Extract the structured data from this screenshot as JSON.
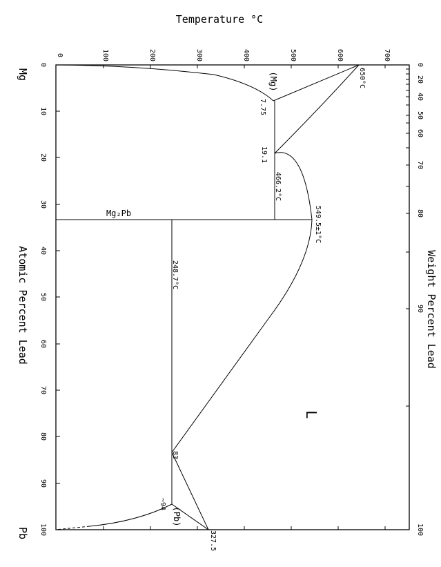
{
  "diagram": {
    "temperature_axis_title": "Temperature °C",
    "atomic_axis_title": "Atomic Percent Lead",
    "weight_axis_title": "Weight Percent Lead",
    "element_left": "Mg",
    "element_right": "Pb",
    "temperature_ticks": [
      "0",
      "100",
      "200",
      "300",
      "400",
      "500",
      "600",
      "700"
    ],
    "atomic_ticks": [
      "0",
      "10",
      "20",
      "30",
      "40",
      "50",
      "60",
      "70",
      "80",
      "90",
      "100"
    ],
    "weight_ticks": [
      "0",
      "20",
      "40",
      "50",
      "60",
      "70",
      "80",
      "90",
      "100"
    ],
    "annotations": {
      "mg_phase": "(Mg)",
      "pb_phase": "(Pb)",
      "liquid": "L",
      "compound": "Mg₂Pb",
      "mg_melting": "650°C",
      "pb_melting": "327.5",
      "mg_solubility": "7.75",
      "eutectic1_comp": "19.1",
      "eutectic1_temp": "466.2°C",
      "compound_melting": "549.5±1°C",
      "eutectic2_temp": "248.7°C",
      "eutectic2_comp": "83",
      "pb_solubility": "~94"
    }
  }
}
